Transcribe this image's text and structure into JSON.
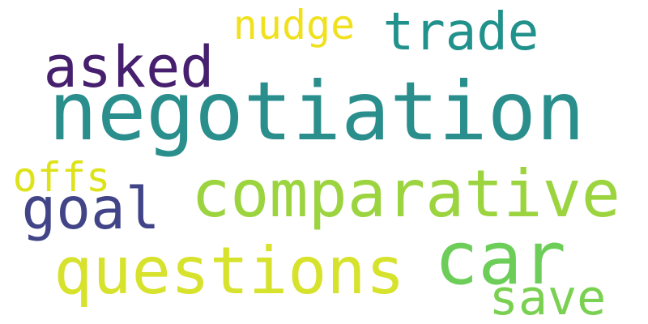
{
  "words": [
    {
      "id": "negotiation",
      "text": "negotiation",
      "color": "#2a8f8c"
    },
    {
      "id": "comparative",
      "text": "comparative",
      "color": "#9bd43f"
    },
    {
      "id": "car",
      "text": "car",
      "color": "#6cce59"
    },
    {
      "id": "questions",
      "text": "questions",
      "color": "#d6e22b"
    },
    {
      "id": "asked",
      "text": "asked",
      "color": "#46206e"
    },
    {
      "id": "trade",
      "text": "trade",
      "color": "#21918c"
    },
    {
      "id": "goal",
      "text": "goal",
      "color": "#414487"
    },
    {
      "id": "save",
      "text": "save",
      "color": "#7ad151"
    },
    {
      "id": "nudge",
      "text": "nudge",
      "color": "#f0e11e"
    },
    {
      "id": "offs",
      "text": "offs",
      "color": "#dde318"
    }
  ]
}
